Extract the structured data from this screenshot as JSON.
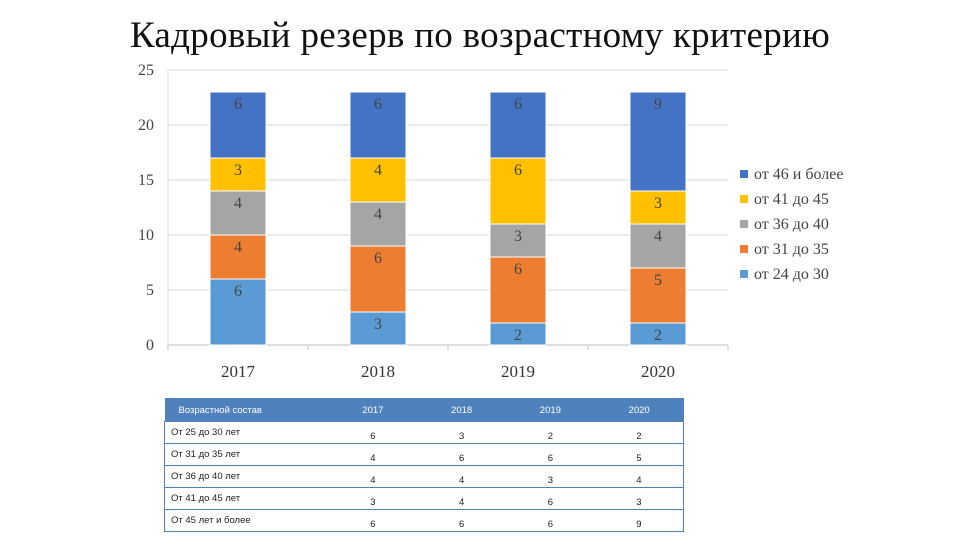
{
  "slide": {
    "title": "Кадровый резерв по возрастному критерию"
  },
  "chart_data": {
    "type": "bar",
    "stacked": true,
    "categories": [
      "2017",
      "2018",
      "2019",
      "2020"
    ],
    "series": [
      {
        "name": "от 24 до 30",
        "color": "#5b9bd5",
        "values": [
          6,
          3,
          2,
          2
        ]
      },
      {
        "name": "от 31 до 35",
        "color": "#ed7d31",
        "values": [
          4,
          6,
          6,
          5
        ]
      },
      {
        "name": "от 36 до 40",
        "color": "#a5a5a5",
        "values": [
          4,
          4,
          3,
          4
        ]
      },
      {
        "name": "от 41 до 45",
        "color": "#ffc000",
        "values": [
          3,
          4,
          6,
          3
        ]
      },
      {
        "name": "от 46 и более",
        "color": "#4472c4",
        "values": [
          6,
          6,
          6,
          9
        ]
      }
    ],
    "ylim": [
      0,
      25
    ],
    "yticks": [
      0,
      5,
      10,
      15,
      20,
      25
    ],
    "grid": true,
    "legend_position": "right",
    "data_labels": true
  },
  "table": {
    "headers": [
      "Возрастной состав",
      "2017",
      "2018",
      "2019",
      "2020"
    ],
    "rows": [
      {
        "label": "От 25 до 30 лет",
        "values": [
          "6",
          "3",
          "2",
          "2"
        ]
      },
      {
        "label": "От 31 до 35 лет",
        "values": [
          "4",
          "6",
          "6",
          "5"
        ]
      },
      {
        "label": "От 36 до 40 лет",
        "values": [
          "4",
          "4",
          "3",
          "4"
        ]
      },
      {
        "label": "От 41 до 45 лет",
        "values": [
          "3",
          "4",
          "6",
          "3"
        ]
      },
      {
        "label": "От 45 лет и более",
        "values": [
          "6",
          "6",
          "6",
          "9"
        ]
      }
    ]
  }
}
